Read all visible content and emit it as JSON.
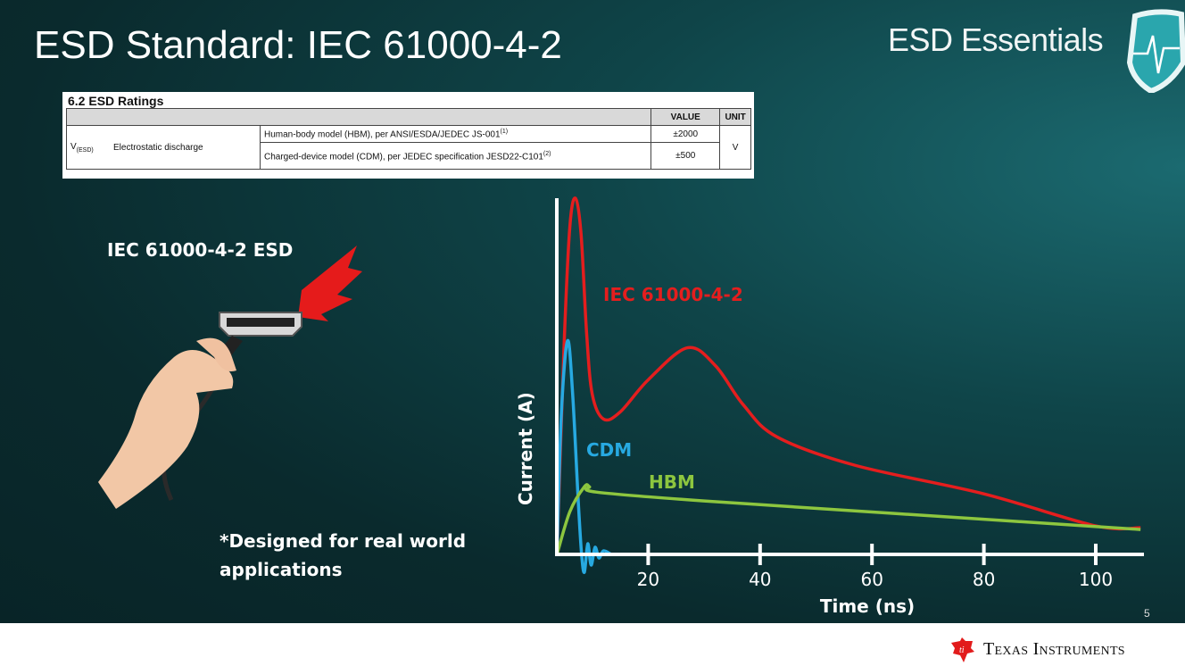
{
  "slide": {
    "title": "ESD Standard: IEC 61000-4-2",
    "brand": "ESD Essentials",
    "page_number": "5",
    "footer_company": "Texas Instruments",
    "left_label": "IEC 61000-4-2 ESD",
    "note_line1": "*Designed for real world",
    "note_line2": "applications"
  },
  "table": {
    "title": "6.2 ESD Ratings",
    "headers": {
      "value": "VALUE",
      "unit": "UNIT"
    },
    "symbol": "V",
    "symbol_sub": "(ESD)",
    "parameter": "Electrostatic discharge",
    "rows": [
      {
        "condition": "Human-body model (HBM), per ANSI/ESDA/JEDEC JS-001",
        "note": "(1)",
        "value": "±2000"
      },
      {
        "condition": "Charged-device model (CDM), per JEDEC specification JESD22-C101",
        "note": "(2)",
        "value": "±500"
      }
    ],
    "unit": "V"
  },
  "chart_data": {
    "type": "line",
    "xlabel": "Time (ns)",
    "ylabel": "Current (A)",
    "xlim": [
      3.7,
      109
    ],
    "ylim": [
      0,
      100
    ],
    "xticks": [
      20,
      40,
      60,
      80,
      100
    ],
    "grid": false,
    "series": [
      {
        "name": "IEC 61000-4-2",
        "color": "#e41e1e",
        "points": [
          [
            3.7,
            0
          ],
          [
            5,
            60
          ],
          [
            6,
            92
          ],
          [
            7,
            100
          ],
          [
            8,
            90
          ],
          [
            9,
            62
          ],
          [
            10,
            45
          ],
          [
            12,
            38
          ],
          [
            15,
            40
          ],
          [
            20,
            49
          ],
          [
            27,
            58
          ],
          [
            32,
            53
          ],
          [
            37,
            42
          ],
          [
            43,
            33
          ],
          [
            57,
            25
          ],
          [
            80,
            17
          ],
          [
            100,
            8
          ],
          [
            108,
            7.5
          ]
        ]
      },
      {
        "name": "CDM",
        "color": "#27a9e1",
        "points": [
          [
            3.7,
            0
          ],
          [
            4.5,
            40
          ],
          [
            5.6,
            60
          ],
          [
            6.5,
            45
          ],
          [
            7.5,
            15
          ],
          [
            8.1,
            0
          ],
          [
            8.6,
            -5
          ],
          [
            9.2,
            3
          ],
          [
            9.8,
            -3
          ],
          [
            10.5,
            2
          ],
          [
            11.2,
            -1
          ],
          [
            12,
            1
          ],
          [
            13.4,
            0
          ]
        ]
      },
      {
        "name": "HBM",
        "color": "#8dc63f",
        "points": [
          [
            3.7,
            0
          ],
          [
            6,
            12
          ],
          [
            8.6,
            19
          ],
          [
            9.5,
            19
          ],
          [
            10.7,
            17.5
          ],
          [
            30,
            15
          ],
          [
            64,
            11.5
          ],
          [
            108,
            7
          ]
        ]
      }
    ]
  }
}
